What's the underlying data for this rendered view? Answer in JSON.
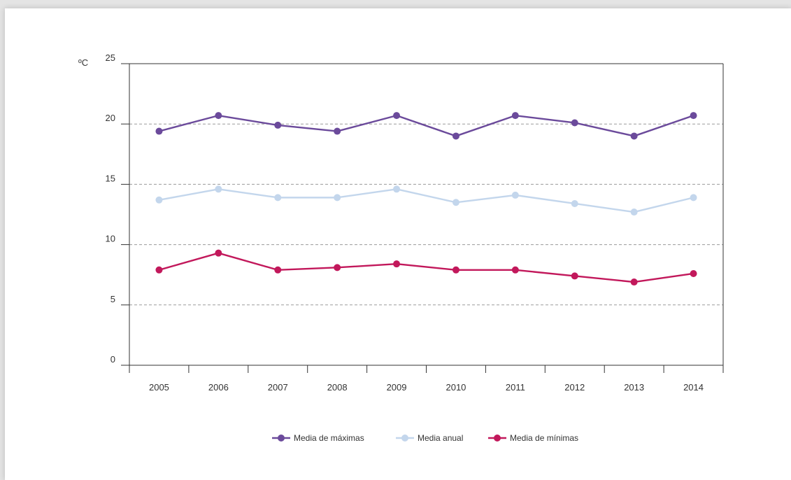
{
  "chart_data": {
    "type": "line",
    "ylabel": "ºC",
    "ylim": [
      0,
      25
    ],
    "yticks": [
      "0",
      "5",
      "10",
      "15",
      "20",
      "25"
    ],
    "categories": [
      "2005",
      "2006",
      "2007",
      "2008",
      "2009",
      "2010",
      "2011",
      "2012",
      "2013",
      "2014"
    ],
    "grid": "horizontal dashed",
    "legend_position": "bottom-center",
    "series": [
      {
        "name": "Media de máximas",
        "color": "#6b4a9b",
        "values": [
          19.4,
          20.7,
          19.9,
          19.4,
          20.7,
          19.0,
          20.7,
          20.1,
          19.0,
          20.7
        ]
      },
      {
        "name": "Media anual",
        "color": "#c3d6ec",
        "values": [
          13.7,
          14.6,
          13.9,
          13.9,
          14.6,
          13.5,
          14.1,
          13.4,
          12.7,
          13.9
        ]
      },
      {
        "name": "Media de mínimas",
        "color": "#c2185b",
        "values": [
          7.9,
          9.3,
          7.9,
          8.1,
          8.4,
          7.9,
          7.9,
          7.4,
          6.9,
          7.6
        ]
      }
    ]
  }
}
